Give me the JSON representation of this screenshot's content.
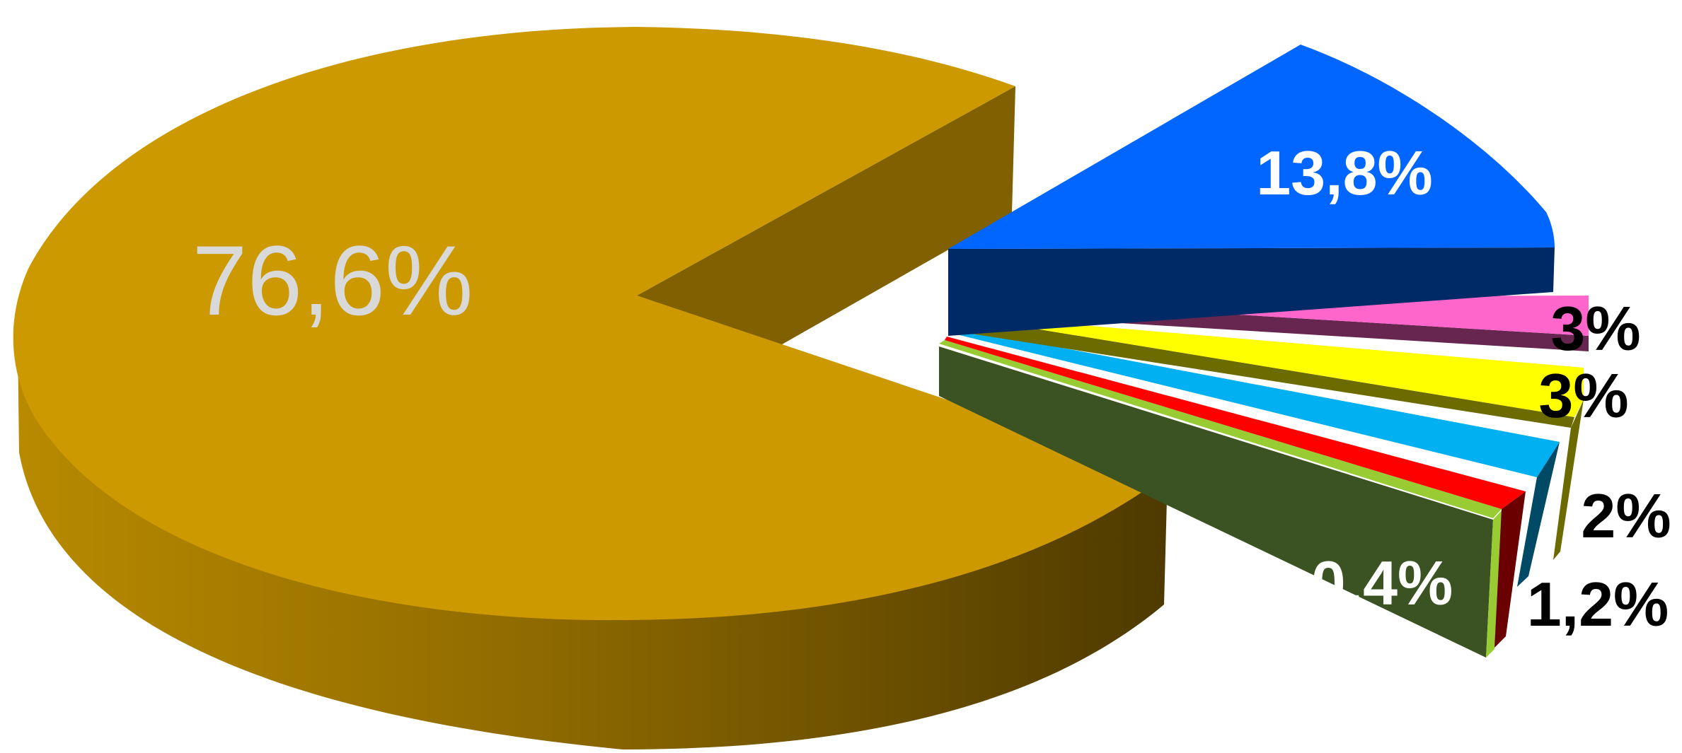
{
  "chart_data": {
    "type": "pie",
    "style": "3d-exploded",
    "title": "",
    "slices": [
      {
        "label": "76,6%",
        "value": 76.6,
        "top_color": "#CC9900",
        "side_color": "#8A6500",
        "label_color": "#D9D9D9"
      },
      {
        "label": "13,8%",
        "value": 13.8,
        "top_color": "#0066FF",
        "side_color": "#002A66",
        "label_color": "#FFFFFF"
      },
      {
        "label": "3%",
        "value": 3.0,
        "top_color": "#FF66CC",
        "side_color": "#66264F",
        "label_color": "#000000"
      },
      {
        "label": "3%",
        "value": 3.0,
        "top_color": "#FFFF00",
        "side_color": "#6B6B00",
        "label_color": "#000000"
      },
      {
        "label": "2%",
        "value": 2.0,
        "top_color": "#00B0F0",
        "side_color": "#004A66",
        "label_color": "#000000"
      },
      {
        "label": "1,2%",
        "value": 1.2,
        "top_color": "#FF0000",
        "side_color": "#6B0000",
        "label_color": "#000000"
      },
      {
        "label": "0,4%",
        "value": 0.4,
        "top_color": "#99CC33",
        "side_color": "#3B5323",
        "label_color": "#FFFFFF"
      }
    ],
    "legend": "none"
  }
}
